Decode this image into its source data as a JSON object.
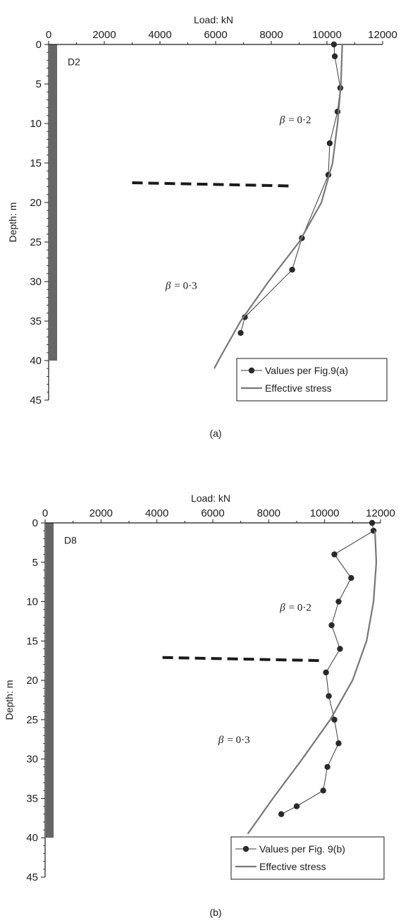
{
  "chart_data": [
    {
      "type": "line",
      "panel_label": "(a)",
      "pile_id": "D2",
      "xlabel": "Load: kN",
      "ylabel": "Depth: m",
      "xlim": [
        0,
        12000
      ],
      "ylim": [
        0,
        45
      ],
      "x_inverted": false,
      "y_inverted": true,
      "x_axis_position": "top",
      "xticks": [
        0,
        2000,
        4000,
        6000,
        8000,
        10000,
        12000
      ],
      "xtick_labels": [
        "0",
        "2000",
        "4000",
        "6000",
        "8000",
        "10000",
        "12000"
      ],
      "yticks": [
        0,
        5,
        10,
        15,
        20,
        25,
        30,
        35,
        40,
        45
      ],
      "ytick_labels": [
        "0",
        "5",
        "10",
        "15",
        "20",
        "25",
        "30",
        "35",
        "40",
        "45"
      ],
      "grid": false,
      "legend_position": "bottom-right",
      "pile": {
        "depth_top": 0,
        "depth_bottom": 40,
        "width_kN": 280
      },
      "series": [
        {
          "name": "Values per Fig.9(a)",
          "style": "line-markers",
          "color": "#3a3a3a",
          "points": [
            [
              10250,
              0
            ],
            [
              10280,
              1.5
            ],
            [
              10480,
              5.5
            ],
            [
              10380,
              8.5
            ],
            [
              10100,
              12.5
            ],
            [
              10050,
              16.5
            ],
            [
              9100,
              24.5
            ],
            [
              8750,
              28.5
            ],
            [
              7050,
              34.5
            ],
            [
              6900,
              36.5
            ]
          ]
        },
        {
          "name": "Effective stress",
          "style": "line",
          "color": "#777777",
          "points": [
            [
              10550,
              0
            ],
            [
              10500,
              5
            ],
            [
              10380,
              10
            ],
            [
              10200,
              15
            ],
            [
              9800,
              20
            ],
            [
              9000,
              25
            ],
            [
              7900,
              30
            ],
            [
              6900,
              35
            ],
            [
              6100,
              40
            ],
            [
              5950,
              41
            ]
          ]
        }
      ],
      "divider": {
        "style": "dashed",
        "color": "#1a1a1a",
        "x_from": 3000,
        "x_to": 8650,
        "y_from": 17.5,
        "y_to": 17.9
      },
      "annotations": [
        {
          "text": "= 0·2",
          "symbol": "β",
          "x": 8300,
          "y": 9.5
        },
        {
          "text": "= 0·3",
          "symbol": "β",
          "x": 4200,
          "y": 30.5
        }
      ]
    },
    {
      "type": "line",
      "panel_label": "(b)",
      "pile_id": "D8",
      "xlabel": "Load: kN",
      "ylabel": "Depth: m",
      "xlim": [
        0,
        12000
      ],
      "ylim": [
        0,
        45
      ],
      "x_inverted": false,
      "y_inverted": true,
      "x_axis_position": "top",
      "xticks": [
        0,
        2000,
        4000,
        6000,
        8000,
        10000,
        12000
      ],
      "xtick_labels": [
        "0",
        "2000",
        "4000",
        "6000",
        "8000",
        "10000",
        "12000"
      ],
      "yticks": [
        0,
        5,
        10,
        15,
        20,
        25,
        30,
        35,
        40,
        45
      ],
      "ytick_labels": [
        "0",
        "5",
        "10",
        "15",
        "20",
        "25",
        "30",
        "35",
        "40",
        "45"
      ],
      "grid": false,
      "legend_position": "bottom-right",
      "pile": {
        "depth_top": 0,
        "depth_bottom": 40,
        "width_kN": 280
      },
      "series": [
        {
          "name": "Values per Fig. 9(b)",
          "style": "line-markers",
          "color": "#3a3a3a",
          "points": [
            [
              11700,
              0
            ],
            [
              11750,
              1
            ],
            [
              10350,
              4
            ],
            [
              10950,
              7
            ],
            [
              10500,
              10
            ],
            [
              10250,
              13
            ],
            [
              10550,
              16
            ],
            [
              10050,
              19
            ],
            [
              10150,
              22
            ],
            [
              10350,
              25
            ],
            [
              10500,
              28
            ],
            [
              10100,
              31
            ],
            [
              9950,
              34
            ],
            [
              9000,
              36
            ],
            [
              8450,
              37
            ]
          ]
        },
        {
          "name": "Effective stress",
          "style": "line",
          "color": "#777777",
          "points": [
            [
              11800,
              1
            ],
            [
              11850,
              5
            ],
            [
              11750,
              10
            ],
            [
              11500,
              15
            ],
            [
              11000,
              20
            ],
            [
              10200,
              25
            ],
            [
              9200,
              30
            ],
            [
              8150,
              35
            ],
            [
              7250,
              39.5
            ]
          ]
        }
      ],
      "divider": {
        "style": "dashed",
        "color": "#1a1a1a",
        "x_from": 4200,
        "x_to": 9950,
        "y_from": 17.1,
        "y_to": 17.5
      },
      "annotations": [
        {
          "text": "= 0·2",
          "symbol": "β",
          "x": 8400,
          "y": 10.7
        },
        {
          "text": "= 0·3",
          "symbol": "β",
          "x": 6200,
          "y": 27.5
        }
      ]
    }
  ]
}
